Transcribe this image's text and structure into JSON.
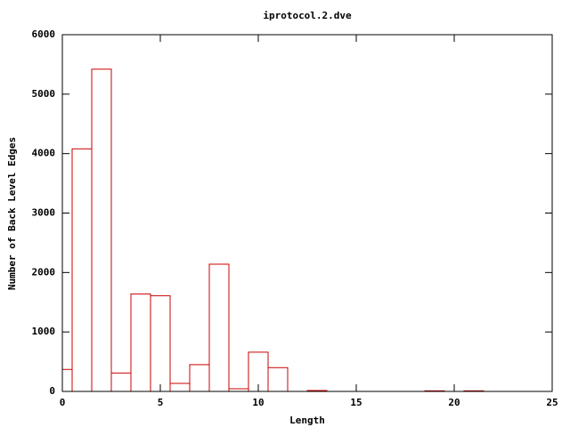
{
  "chart_data": {
    "type": "bar",
    "title": "iprotocol.2.dve",
    "x_label": "Length",
    "y_label": "Number of Back Level Edges",
    "x": [
      0,
      1,
      2,
      3,
      4,
      5,
      6,
      7,
      8,
      9,
      10,
      11,
      13,
      19,
      21
    ],
    "values": [
      370,
      4080,
      5420,
      310,
      1640,
      1610,
      135,
      450,
      2140,
      45,
      660,
      400,
      15,
      10,
      10
    ],
    "color": "#cc0000",
    "xlim": [
      0,
      25
    ],
    "xticks": [
      0,
      5,
      10,
      15,
      20,
      25
    ],
    "ylim": [
      0,
      6000
    ],
    "yticks": [
      0,
      1000,
      2000,
      3000,
      4000,
      5000,
      6000
    ],
    "grid": false
  }
}
